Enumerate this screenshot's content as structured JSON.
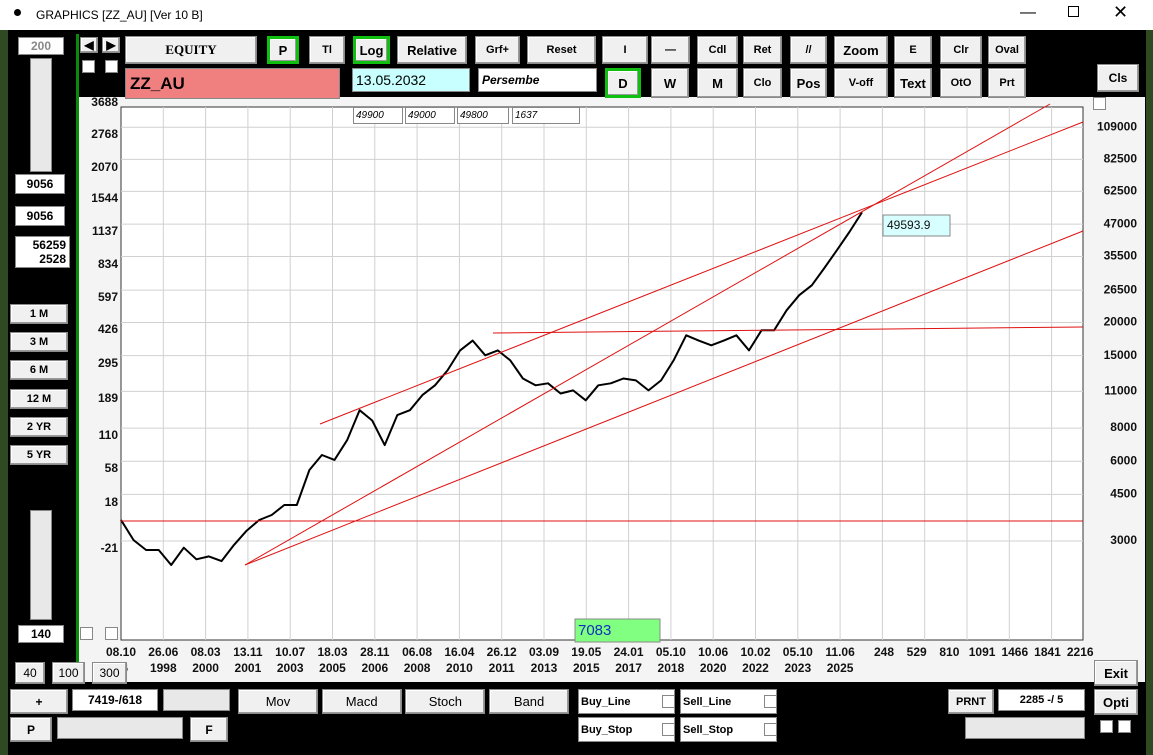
{
  "window": {
    "title": "GRAPHICS  [ZZ_AU] [Ver 10 B]"
  },
  "toolbar": {
    "row1": [
      "EQUITY",
      "P",
      "Tl",
      "Log",
      "Relative",
      "Grf+",
      "Reset",
      "I",
      "—",
      "Cdl",
      "Ret",
      "//",
      "Zoom",
      "E",
      "Clr",
      "Oval"
    ],
    "symbol": "ZZ_AU",
    "date": "13.05.2032",
    "day": "Persembe",
    "row2": [
      "D",
      "W",
      "M",
      "Clo",
      "Pos",
      "V-off",
      "Text",
      "OtO",
      "Prt"
    ],
    "cls": "Cls",
    "info": [
      "49900",
      "49000",
      "49800",
      "1637"
    ]
  },
  "left_panel": {
    "period": "200",
    "boxes": [
      "9056",
      "9056"
    ],
    "stats": [
      "56259",
      "2528"
    ],
    "ranges": [
      "1 M",
      "3 M",
      "6 M",
      "12 M",
      "2 YR",
      "5 YR"
    ],
    "bottom_value": "140",
    "zoom": [
      "40",
      "100",
      "300"
    ]
  },
  "bottom_bar": {
    "plus": "+",
    "position": "7419-/618",
    "p": "P",
    "f": "F",
    "indicators": [
      "Mov",
      "Macd",
      "Stoch",
      "Band"
    ],
    "signals": [
      "Buy_Line",
      "Sell_Line",
      "Buy_Stop",
      "Sell_Stop"
    ],
    "print": "PRNT",
    "counter": "2285 -/ 5",
    "exit": "Exit",
    "opti": "Opti"
  },
  "chart_data": {
    "type": "line",
    "log_scale": true,
    "grid": true,
    "y_left_label": "%",
    "y_left_ticks": [
      3688,
      2768,
      2070,
      1544,
      1137,
      834,
      597,
      426,
      295,
      189,
      110,
      58,
      18,
      -21
    ],
    "ylim": [
      1270,
      130000
    ],
    "yticks": [
      109000,
      82500,
      62500,
      47000,
      35500,
      26500,
      20000,
      15000,
      11000,
      8000,
      6000,
      4500,
      3000
    ],
    "x_labels_top": [
      "08.10",
      "26.06",
      "08.03",
      "13.11",
      "10.07",
      "18.03",
      "28.11",
      "06.08",
      "16.04",
      "26.12",
      "03.09",
      "19.05",
      "24.01",
      "05.10",
      "10.06",
      "10.02",
      "05.10",
      "11.06",
      "248",
      "529",
      "810",
      "1091",
      "1466",
      "1841",
      "2216"
    ],
    "x_labels_bottom": [
      "6",
      "1998",
      "2000",
      "2001",
      "2003",
      "2005",
      "2006",
      "2008",
      "2010",
      "2011",
      "2013",
      "2015",
      "2017",
      "2018",
      "2020",
      "2022",
      "2023",
      "2025"
    ],
    "series": [
      {
        "color": "#000000",
        "values": [
          3600,
          3025,
          2775,
          2775,
          2435,
          2830,
          2560,
          2625,
          2520,
          2900,
          3280,
          3600,
          3760,
          4100,
          4100,
          5560,
          6330,
          6070,
          7200,
          9340,
          8540,
          6900,
          8950,
          9340,
          10650,
          11600,
          13200,
          15700,
          17100,
          15050,
          15700,
          14400,
          12300,
          11600,
          11800,
          10800,
          11100,
          10180,
          11600,
          11800,
          12300,
          12100,
          11100,
          12100,
          14400,
          17900,
          17100,
          16420,
          17100,
          17900,
          15700,
          18700,
          18700,
          22250,
          25370,
          27650,
          32100,
          37500,
          43900,
          52100
        ]
      }
    ],
    "last_value_label": "49593.9",
    "cursor_index": "7083"
  }
}
